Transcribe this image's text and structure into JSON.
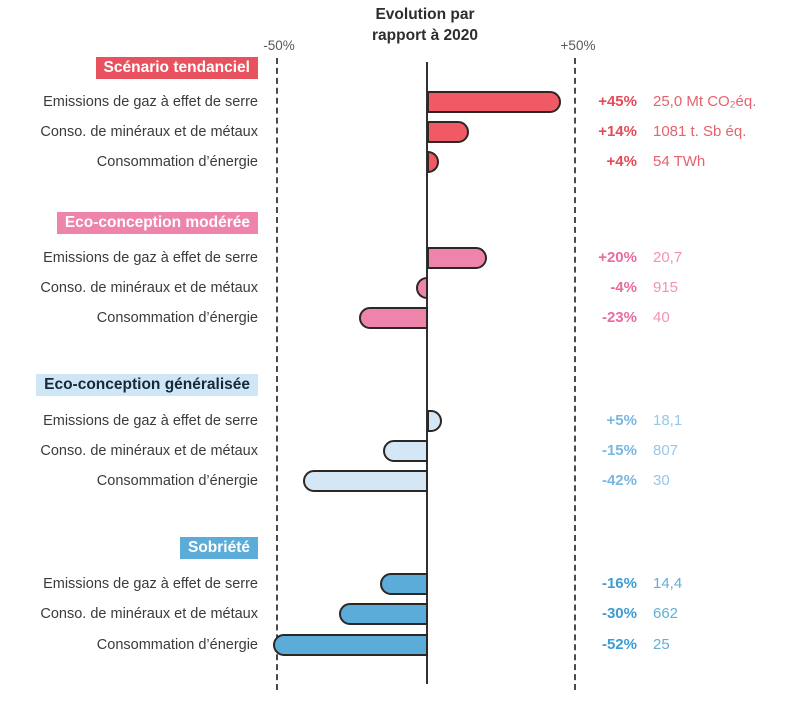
{
  "header": {
    "title_line1": "Evolution par",
    "title_line2": "rapport à 2020",
    "axis_min_label": "-50%",
    "axis_max_label": "+50%"
  },
  "chart_data": {
    "type": "bar",
    "orientation": "horizontal",
    "title": "Evolution par rapport à 2020",
    "axis_range": [
      -50,
      50
    ],
    "axis_unit": "%",
    "gridlines": [
      "-50%",
      "0",
      "+50%"
    ],
    "bar_outline_color": "#2b2724",
    "sections": [
      {
        "title": "Scénario tendanciel",
        "colors": {
          "badge_bg": "#e8525f",
          "badge_text": "#ffffff",
          "bar_fill": "#f15964",
          "pct_text": "#e44a57",
          "value_text": "#e6626d"
        },
        "rows": [
          {
            "label": "Emissions de gaz à effet de serre",
            "pct": "+45%",
            "pct_value": 45,
            "value": "25,0 Mt CO₂éq."
          },
          {
            "label": "Conso. de minéraux et de métaux",
            "pct": "+14%",
            "pct_value": 14,
            "value": "1081 t. Sb éq."
          },
          {
            "label": "Consommation d’énergie",
            "pct": "+4%",
            "pct_value": 4,
            "value": "54 TWh"
          }
        ]
      },
      {
        "title": "Eco-conception modérée",
        "colors": {
          "badge_bg": "#ee84ac",
          "badge_text": "#ffffff",
          "bar_fill": "#ee84ac",
          "pct_text": "#e96b9f",
          "value_text": "#f193b8"
        },
        "rows": [
          {
            "label": "Emissions de gaz à effet de serre",
            "pct": "+20%",
            "pct_value": 20,
            "value": "20,7"
          },
          {
            "label": "Conso. de minéraux et de métaux",
            "pct": "-4%",
            "pct_value": -4,
            "value": "915"
          },
          {
            "label": "Consommation d’énergie",
            "pct": "-23%",
            "pct_value": -23,
            "value": "40"
          }
        ]
      },
      {
        "title": "Eco-conception généralisée",
        "colors": {
          "badge_bg": "#cfe6f7",
          "badge_text": "#16283c",
          "bar_fill": "#d3e7f6",
          "pct_text": "#79b7e2",
          "value_text": "#95c8ea"
        },
        "rows": [
          {
            "label": "Emissions de gaz à effet de serre",
            "pct": "+5%",
            "pct_value": 5,
            "value": "18,1"
          },
          {
            "label": "Conso. de minéraux et de métaux",
            "pct": "-15%",
            "pct_value": -15,
            "value": "807"
          },
          {
            "label": "Consommation d’énergie",
            "pct": "-42%",
            "pct_value": -42,
            "value": "30"
          }
        ]
      },
      {
        "title": "Sobriété",
        "colors": {
          "badge_bg": "#5bacd9",
          "badge_text": "#ffffff",
          "bar_fill": "#5bacd9",
          "pct_text": "#3f9bd3",
          "value_text": "#60afdc"
        },
        "rows": [
          {
            "label": "Emissions de gaz à effet de serre",
            "pct": "-16%",
            "pct_value": -16,
            "value": "14,4"
          },
          {
            "label": "Conso. de minéraux et de métaux",
            "pct": "-30%",
            "pct_value": -30,
            "value": "662"
          },
          {
            "label": "Consommation d’énergie",
            "pct": "-52%",
            "pct_value": -52,
            "value": "25"
          }
        ]
      }
    ]
  }
}
